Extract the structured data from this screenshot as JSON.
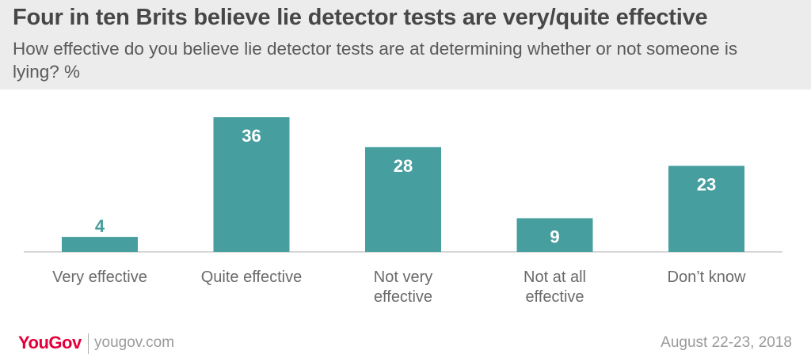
{
  "header": {
    "title": "Four in ten Brits believe lie detector tests are very/quite effective",
    "subtitle": "How effective do you believe lie detector tests are at determining whether or not someone is lying? %"
  },
  "chart_data": {
    "type": "bar",
    "categories": [
      [
        "Very effective"
      ],
      [
        "Quite effective"
      ],
      [
        "Not very",
        "effective"
      ],
      [
        "Not at all",
        "effective"
      ],
      [
        "Don’t know"
      ]
    ],
    "values": [
      4,
      36,
      28,
      9,
      23
    ],
    "title": "Four in ten Brits believe lie detector tests are very/quite effective",
    "xlabel": "",
    "ylabel": "",
    "ylim": [
      0,
      36
    ],
    "grid": false,
    "bar_color": "#479e9e",
    "label_color": "#ffffff",
    "small_label_color": "#479e9e"
  },
  "footer": {
    "logo": "YouGov",
    "site": "yougov.com",
    "date": "August 22-23, 2018"
  },
  "colors": {
    "header_bg": "#ececec",
    "brand": "#e4003b",
    "bar": "#479e9e"
  }
}
